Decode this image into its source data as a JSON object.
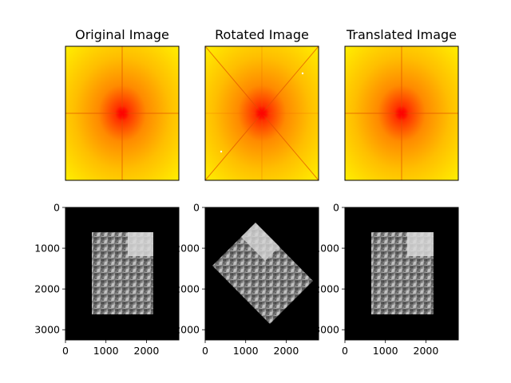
{
  "figure": {
    "panel_titles": [
      "Original Image",
      "Rotated Image",
      "Translated Image"
    ]
  },
  "chart_data": [
    {
      "type": "heatmap",
      "title": "Original Image",
      "description_colormap": "autumn",
      "axes_visible": false,
      "colors": {
        "low": "#ff0000",
        "mid": "#ff8000",
        "high": "#ffff00"
      }
    },
    {
      "type": "heatmap",
      "title": "Rotated Image",
      "description_colormap": "autumn",
      "axes_visible": false,
      "colors": {
        "low": "#ff0000",
        "mid": "#ff8000",
        "high": "#ffff00"
      }
    },
    {
      "type": "heatmap",
      "title": "Translated Image",
      "description_colormap": "autumn",
      "axes_visible": false,
      "colors": {
        "low": "#ff0000",
        "mid": "#ff8000",
        "high": "#ffff00"
      }
    },
    {
      "type": "image",
      "xlim": [
        0,
        2800
      ],
      "ylim": [
        3250,
        0
      ],
      "xticks": [
        "0",
        "1000",
        "2000"
      ],
      "yticks": [
        "0",
        "1000",
        "2000",
        "3000"
      ],
      "photo_region": {
        "x": [
          650,
          2150
        ],
        "y": [
          650,
          2650
        ]
      }
    },
    {
      "type": "image",
      "xlim": [
        0,
        2800
      ],
      "ylim": [
        3250,
        0
      ],
      "xticks": [
        "0",
        "1000",
        "2000"
      ],
      "yticks": [
        "0",
        "2000",
        "2000",
        "2000"
      ],
      "rotation_deg": 45
    },
    {
      "type": "image",
      "xlim": [
        0,
        2800
      ],
      "ylim": [
        3250,
        0
      ],
      "xticks": [
        "0",
        "1000",
        "2000"
      ],
      "yticks": [
        "0",
        "1000",
        "2000",
        "3000"
      ],
      "photo_region": {
        "x": [
          650,
          2150
        ],
        "y": [
          650,
          2650
        ]
      }
    }
  ]
}
